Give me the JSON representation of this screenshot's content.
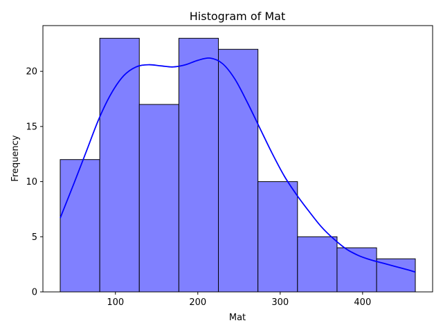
{
  "chart_data": {
    "type": "bar",
    "title": "Histogram of Mat",
    "xlabel": "Mat",
    "ylabel": "Frequency",
    "xlim": [
      12,
      485
    ],
    "ylim": [
      0,
      24.15
    ],
    "x_ticks": [
      100,
      200,
      300,
      400
    ],
    "y_ticks": [
      0,
      5,
      10,
      15,
      20
    ],
    "bin_edges": [
      33,
      81,
      129,
      177,
      225,
      273,
      321,
      369,
      417,
      464
    ],
    "values": [
      12,
      23,
      17,
      23,
      22,
      10,
      5,
      4,
      3
    ],
    "kde": {
      "x": [
        33,
        50,
        65,
        80,
        95,
        110,
        125,
        140,
        155,
        170,
        185,
        200,
        215,
        230,
        245,
        260,
        275,
        290,
        305,
        320,
        335,
        350,
        365,
        380,
        395,
        410,
        425,
        440,
        455,
        464
      ],
      "y": [
        6.7,
        9.9,
        12.8,
        15.7,
        18.0,
        19.6,
        20.4,
        20.6,
        20.5,
        20.4,
        20.6,
        21.0,
        21.2,
        20.7,
        19.3,
        17.2,
        14.9,
        12.6,
        10.5,
        8.8,
        7.3,
        5.9,
        4.8,
        3.9,
        3.3,
        2.9,
        2.6,
        2.3,
        2.0,
        1.8
      ]
    },
    "grid": false,
    "colors": {
      "bar_fill": "#8080ff",
      "bar_edge": "#000000",
      "kde_line": "#0000ff"
    }
  }
}
